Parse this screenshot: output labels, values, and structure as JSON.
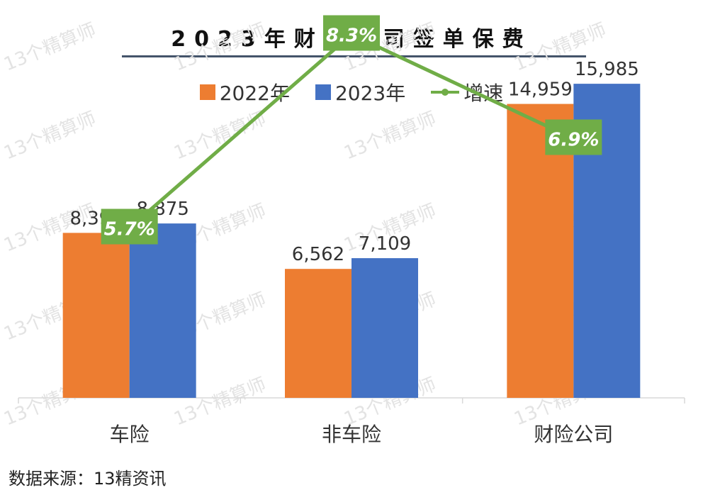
{
  "chart_data": {
    "type": "bar",
    "title": "2023年财险公司签单保费",
    "categories": [
      "车险",
      "非车险",
      "财险公司"
    ],
    "series": [
      {
        "name": "2022年",
        "color": "#ed7d31",
        "values": [
          8396,
          6562,
          14959
        ],
        "labels": [
          "8,396",
          "6,562",
          "14,959"
        ]
      },
      {
        "name": "2023年",
        "color": "#4472c4",
        "values": [
          8875,
          7109,
          15985
        ],
        "labels": [
          "8,875",
          "7,109",
          "15,985"
        ]
      }
    ],
    "line_series": {
      "name": "增速",
      "color": "#70ad47",
      "values": [
        5.7,
        8.3,
        6.9
      ],
      "labels": [
        "5.7%",
        "8.3%",
        "6.9%"
      ]
    },
    "ylim": [
      0,
      17000
    ],
    "legend": "top-center",
    "grid": false
  },
  "source": "数据来源：13精资讯",
  "watermark": "13个精算师"
}
